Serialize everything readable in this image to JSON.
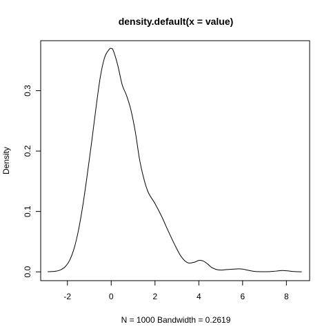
{
  "chart_data": {
    "type": "line",
    "title": "density.default(x = value)",
    "xlabel": "N = 1000   Bandwidth = 0.2619",
    "ylabel": "Density",
    "xlim": [
      -3.22,
      9.06
    ],
    "ylim": [
      -0.0146,
      0.3828
    ],
    "x_ticks": [
      -2,
      0,
      2,
      4,
      6,
      8
    ],
    "x_tick_labels": [
      "-2",
      "0",
      "2",
      "4",
      "6",
      "8"
    ],
    "y_ticks": [
      0.0,
      0.1,
      0.2,
      0.3
    ],
    "y_tick_labels": [
      "0.0",
      "0.1",
      "0.2",
      "0.3"
    ],
    "grid": false,
    "series": [
      {
        "color": "#000000",
        "x": [
          -2.9,
          -2.7,
          -2.5,
          -2.3,
          -2.1,
          -1.9,
          -1.7,
          -1.5,
          -1.3,
          -1.1,
          -0.9,
          -0.7,
          -0.5,
          -0.3,
          -0.1,
          0.0,
          0.1,
          0.3,
          0.5,
          0.7,
          0.9,
          1.1,
          1.3,
          1.5,
          1.7,
          2.0,
          2.3,
          2.6,
          2.9,
          3.2,
          3.5,
          3.8,
          4.0,
          4.2,
          4.4,
          4.6,
          4.8,
          5.0,
          5.2,
          5.4,
          5.6,
          5.8,
          6.0,
          6.2,
          6.4,
          6.6,
          6.8,
          7.0,
          7.2,
          7.4,
          7.6,
          7.8,
          8.0,
          8.2,
          8.4,
          8.7
        ],
        "y": [
          0.0002,
          0.0005,
          0.0013,
          0.0035,
          0.0085,
          0.019,
          0.038,
          0.068,
          0.109,
          0.159,
          0.213,
          0.27,
          0.322,
          0.355,
          0.368,
          0.37,
          0.366,
          0.342,
          0.31,
          0.292,
          0.268,
          0.232,
          0.185,
          0.153,
          0.131,
          0.113,
          0.092,
          0.068,
          0.045,
          0.025,
          0.015,
          0.016,
          0.019,
          0.018,
          0.013,
          0.007,
          0.004,
          0.003,
          0.0035,
          0.004,
          0.0045,
          0.005,
          0.0045,
          0.003,
          0.0015,
          0.0006,
          0.0003,
          0.0002,
          0.0003,
          0.0008,
          0.0015,
          0.0022,
          0.0018,
          0.001,
          0.0004,
          0.0001
        ]
      }
    ]
  }
}
